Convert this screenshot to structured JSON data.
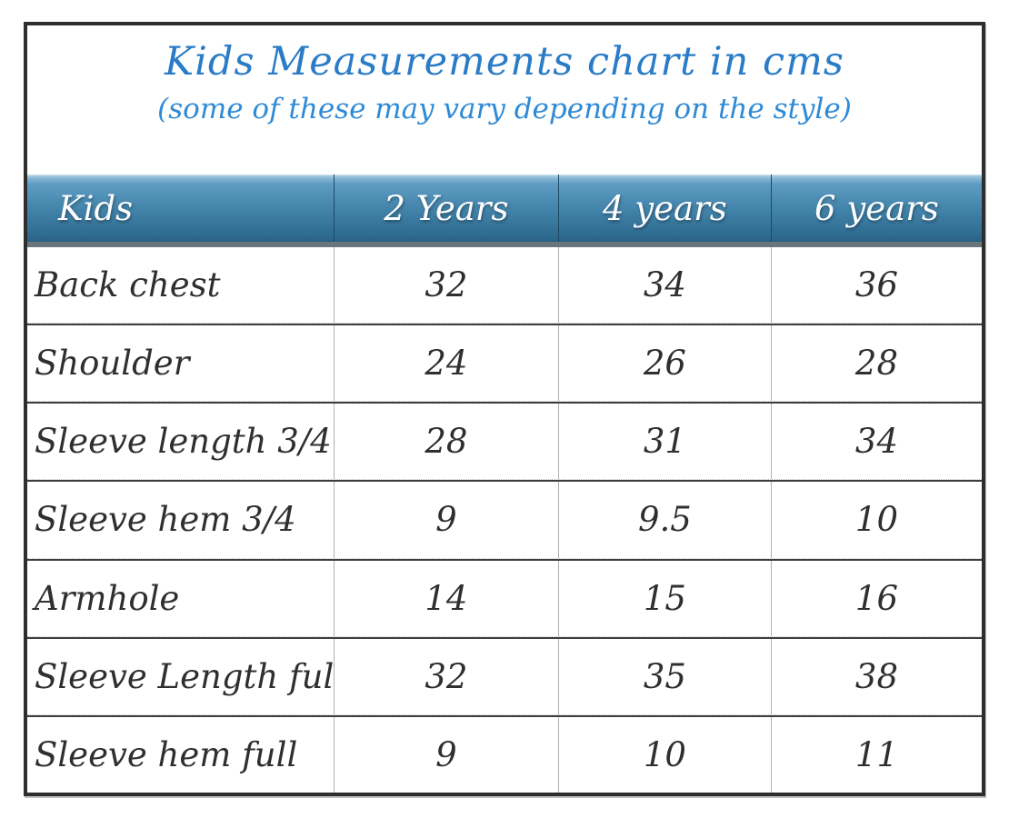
{
  "chart_data": {
    "type": "table",
    "title": "Kids Measurements chart in cms",
    "subtitle": "(some of these may vary depending on the style)",
    "unit": "cms",
    "columns": [
      "Kids",
      "2 Years",
      "4 years",
      "6 years"
    ],
    "rows": [
      {
        "label": "Back chest",
        "values": [
          "32",
          "34",
          "36"
        ]
      },
      {
        "label": "Shoulder",
        "values": [
          "24",
          "26",
          "28"
        ]
      },
      {
        "label": "Sleeve length 3/4",
        "values": [
          "28",
          "31",
          "34"
        ]
      },
      {
        "label": "Sleeve hem 3/4",
        "values": [
          "9",
          "9.5",
          "10"
        ]
      },
      {
        "label": "Armhole",
        "values": [
          "14",
          "15",
          "16"
        ]
      },
      {
        "label": "Sleeve Length full",
        "values": [
          "32",
          "35",
          "38"
        ]
      },
      {
        "label": "Sleeve hem full",
        "values": [
          "9",
          "10",
          "11"
        ]
      }
    ]
  },
  "colors": {
    "title_blue": "#2a7cc7",
    "subtitle_blue": "#2f8ad6",
    "header_gradient_top": "#cfe3ee",
    "header_gradient_mid": "#4586ac",
    "header_gradient_bottom": "#2e6a8f",
    "header_shadow_strip": "#6b757c",
    "header_text": "#ffffff",
    "body_text": "#2f2f2f",
    "outer_border": "#2e2e2e",
    "row_separator_solid": "#3e3e3e",
    "row_separator_dotted": "#c6c6c6",
    "column_separator_body": "#b0b0b0",
    "column_separator_header": "#1d4a66"
  }
}
